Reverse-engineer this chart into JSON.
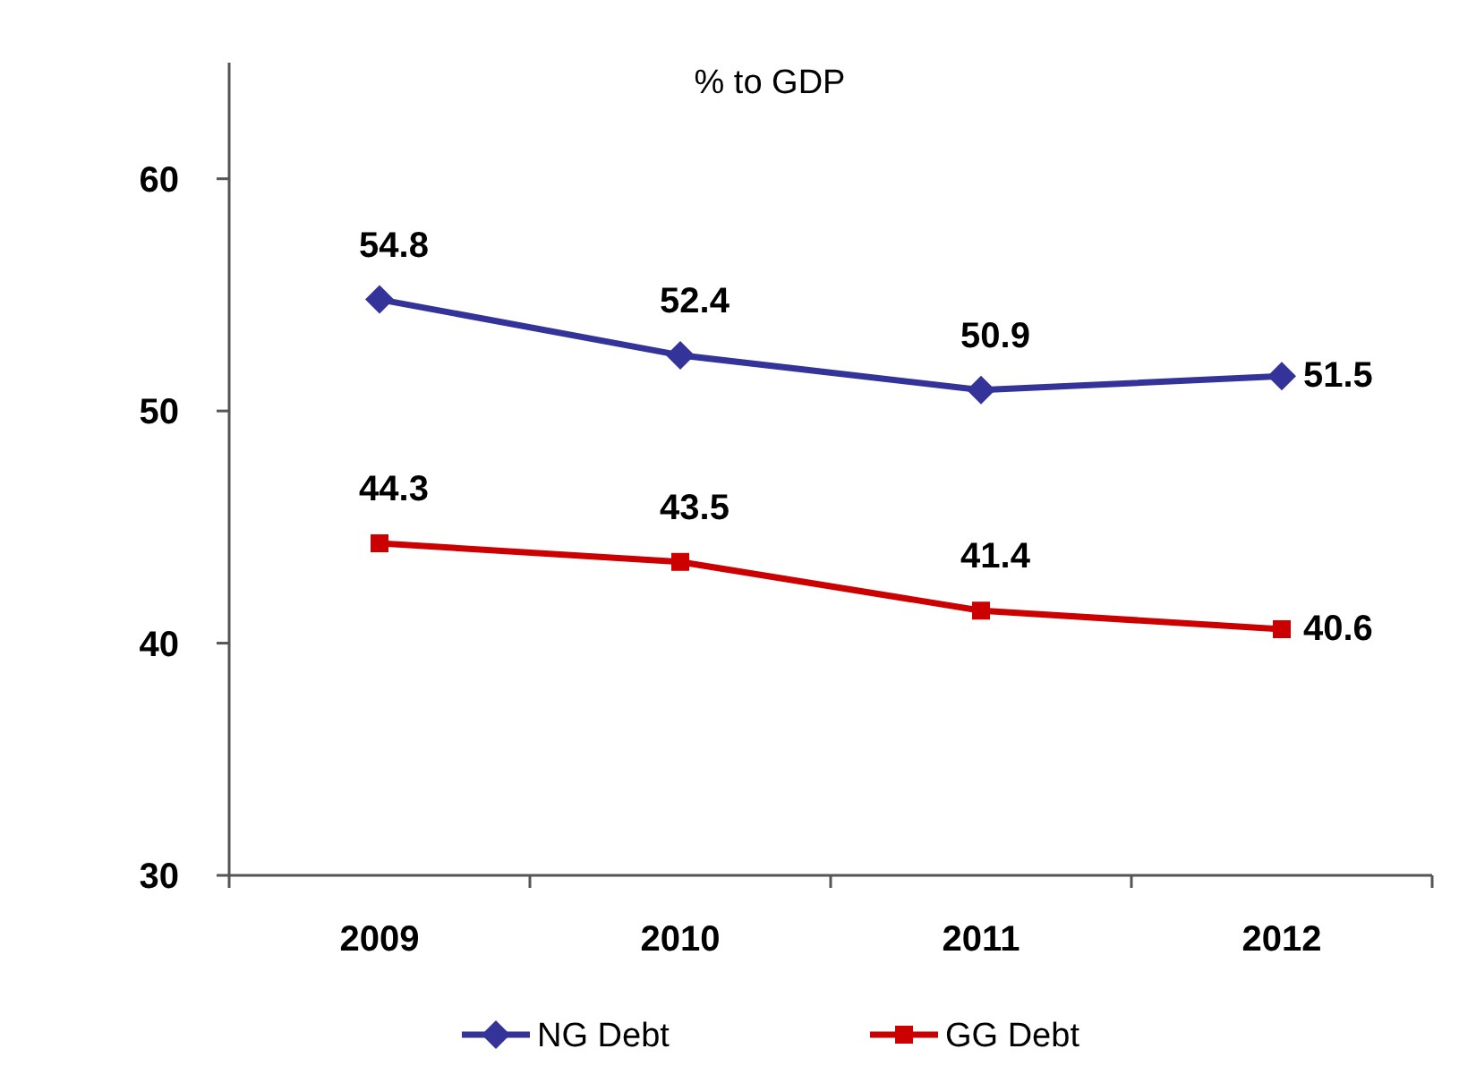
{
  "chart_data": {
    "type": "line",
    "title": "% to GDP",
    "categories": [
      "2009",
      "2010",
      "2011",
      "2012"
    ],
    "series": [
      {
        "name": "NG Debt",
        "color": "#333399",
        "marker": "diamond",
        "values": [
          54.8,
          52.4,
          50.9,
          51.5
        ]
      },
      {
        "name": "GG Debt",
        "color": "#cc0000",
        "marker": "square",
        "values": [
          44.3,
          43.5,
          41.4,
          40.6
        ]
      }
    ],
    "ylim": [
      30,
      65
    ],
    "yticks": [
      30,
      40,
      50,
      60
    ],
    "grid": false,
    "legend": "bottom",
    "data_labels": true,
    "line_style": "solid"
  }
}
